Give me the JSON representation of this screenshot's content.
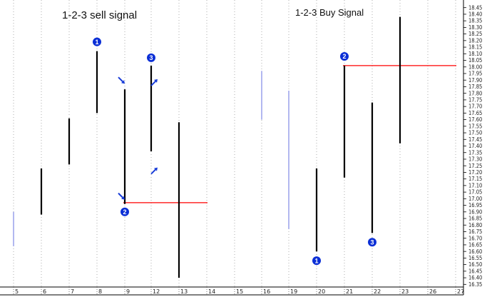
{
  "chart_data": {
    "type": "bar",
    "subtype": "ohlc-range-bars",
    "titles": [
      {
        "text": "1-2-3 sell signal",
        "over": "left-panel"
      },
      {
        "text": "1-2-3 Buy Signal",
        "over": "right-panel"
      }
    ],
    "ylim": [
      16.33,
      18.47
    ],
    "yticks": [
      "16.35",
      "16.40",
      "16.45",
      "16.50",
      "16.55",
      "16.60",
      "16.65",
      "16.70",
      "16.75",
      "16.80",
      "16.85",
      "16.90",
      "16.95",
      "17.00",
      "17.05",
      "17.10",
      "17.15",
      "17.20",
      "17.25",
      "17.30",
      "17.35",
      "17.40",
      "17.45",
      "17.50",
      "17.55",
      "17.60",
      "17.65",
      "17.70",
      "17.75",
      "17.80",
      "17.85",
      "17.90",
      "17.95",
      "18.00",
      "18.05",
      "18.10",
      "18.15",
      "18.20",
      "18.25",
      "18.30",
      "18.35",
      "18.40",
      "18.45"
    ],
    "xticks": [
      "5",
      "6",
      "7",
      "8",
      "9",
      "12",
      "13",
      "14",
      "15",
      "16",
      "19",
      "20",
      "21",
      "22",
      "23",
      "26",
      "27"
    ],
    "bars": [
      {
        "x": "5",
        "low": 16.64,
        "high": 16.9,
        "color": "#aab0ee"
      },
      {
        "x": "6",
        "low": 16.88,
        "high": 17.23,
        "color": "#000000"
      },
      {
        "x": "7",
        "low": 17.26,
        "high": 17.61,
        "color": "#000000"
      },
      {
        "x": "8",
        "low": 17.65,
        "high": 18.12,
        "color": "#000000"
      },
      {
        "x": "9",
        "low": 16.96,
        "high": 17.83,
        "color": "#000000"
      },
      {
        "x": "12",
        "low": 17.36,
        "high": 18.01,
        "color": "#000000"
      },
      {
        "x": "13",
        "low": 16.4,
        "high": 17.58,
        "color": "#000000"
      },
      {
        "x": "16",
        "low": 17.6,
        "high": 17.97,
        "color": "#aab0ee"
      },
      {
        "x": "19",
        "low": 16.77,
        "high": 17.82,
        "color": "#aab0ee"
      },
      {
        "x": "20",
        "low": 16.6,
        "high": 17.23,
        "color": "#000000"
      },
      {
        "x": "21",
        "low": 17.16,
        "high": 18.01,
        "color": "#000000"
      },
      {
        "x": "22",
        "low": 16.74,
        "high": 17.73,
        "color": "#000000"
      },
      {
        "x": "23",
        "low": 17.42,
        "high": 18.38,
        "color": "#000000"
      }
    ],
    "reference_lines": [
      {
        "y": 16.97,
        "from": "9",
        "to": "14",
        "color": "#ff0000"
      },
      {
        "y": 18.01,
        "from": "21",
        "to": "27",
        "color": "#ff0000"
      }
    ],
    "markers": [
      {
        "label": "1",
        "x": "8",
        "y": 18.19
      },
      {
        "label": "2",
        "x": "9",
        "y": 16.9
      },
      {
        "label": "3",
        "x": "12",
        "y": 18.07
      },
      {
        "label": "1",
        "x": "20",
        "y": 16.53
      },
      {
        "label": "2",
        "x": "21",
        "y": 18.08
      },
      {
        "label": "3",
        "x": "22",
        "y": 16.67
      }
    ],
    "arrows": [
      {
        "x": "9",
        "y": 17.9,
        "dir": "down-right"
      },
      {
        "x": "9",
        "y": 17.02,
        "dir": "down-right"
      },
      {
        "x": "12",
        "y": 17.88,
        "dir": "up-right"
      },
      {
        "x": "12",
        "y": 17.21,
        "dir": "up-right"
      }
    ],
    "grid": "vertical-dotted",
    "colors": {
      "bar": "#000000",
      "faded_bar": "#aab0ee",
      "signal_line": "#ff0000",
      "marker": "#0b2fd6",
      "arrow": "#1a3ed8"
    }
  }
}
